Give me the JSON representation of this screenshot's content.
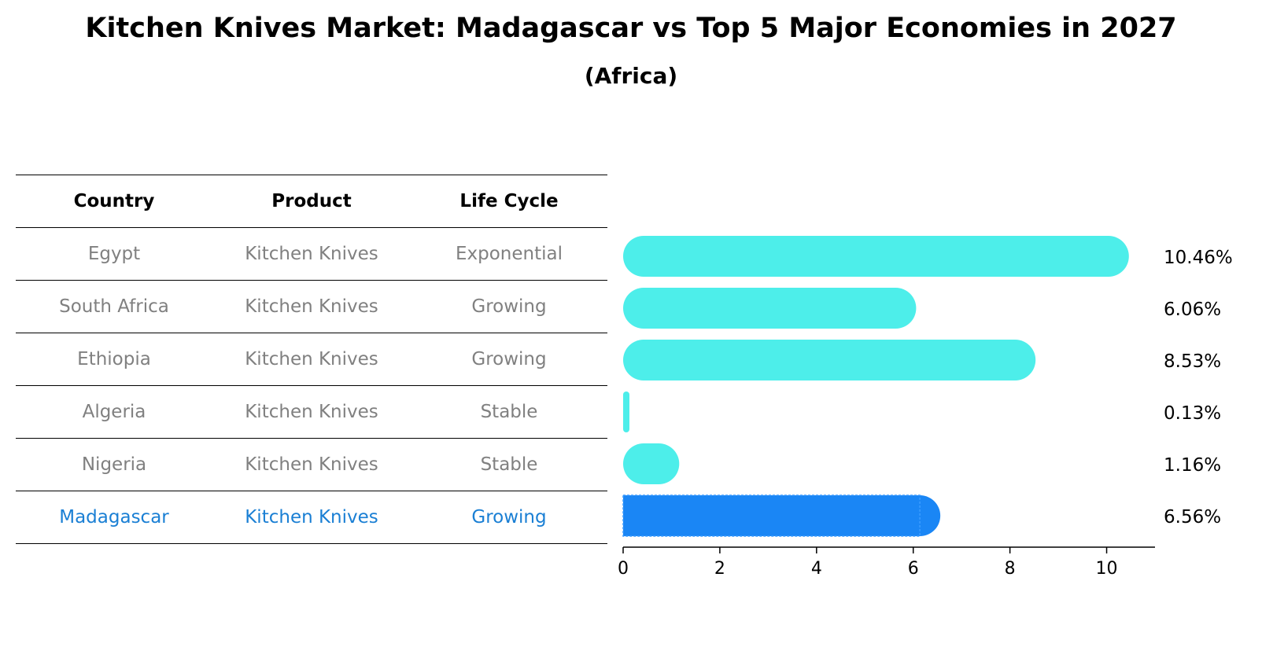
{
  "title": "Kitchen Knives Market: Madagascar vs Top 5 Major Economies in 2027",
  "subtitle": "(Africa)",
  "table": {
    "headers": [
      "Country",
      "Product",
      "Life Cycle"
    ],
    "rows": [
      {
        "country": "Egypt",
        "product": "Kitchen Knives",
        "life_cycle": "Exponential"
      },
      {
        "country": "South Africa",
        "product": "Kitchen Knives",
        "life_cycle": "Growing"
      },
      {
        "country": "Ethiopia",
        "product": "Kitchen Knives",
        "life_cycle": "Growing"
      },
      {
        "country": "Algeria",
        "product": "Kitchen Knives",
        "life_cycle": "Stable"
      },
      {
        "country": "Nigeria",
        "product": "Kitchen Knives",
        "life_cycle": "Stable"
      },
      {
        "country": "Madagascar",
        "product": "Kitchen Knives",
        "life_cycle": "Growing"
      }
    ]
  },
  "colors": {
    "bar": "#4deeea",
    "highlight": "#1a86f5",
    "highlight_text": "#1a7fd4",
    "muted_text": "#808080"
  },
  "chart_data": {
    "type": "bar",
    "orientation": "horizontal",
    "categories": [
      "Egypt",
      "South Africa",
      "Ethiopia",
      "Algeria",
      "Nigeria",
      "Madagascar"
    ],
    "values": [
      10.46,
      6.06,
      8.53,
      0.13,
      1.16,
      6.56
    ],
    "value_labels": [
      "10.46%",
      "6.06%",
      "8.53%",
      "0.13%",
      "1.16%",
      "6.56%"
    ],
    "highlight_category": "Madagascar",
    "xlim": [
      0,
      11
    ],
    "xticks": [
      0,
      2,
      4,
      6,
      8,
      10
    ],
    "grid": false
  }
}
